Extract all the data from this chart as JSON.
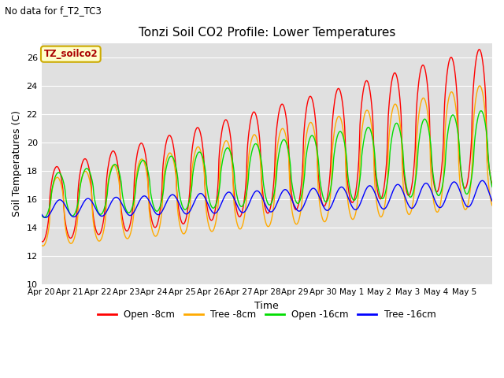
{
  "title": "Tonzi Soil CO2 Profile: Lower Temperatures",
  "subtitle": "No data for f_T2_TC3",
  "ylabel": "Soil Temperatures (C)",
  "xlabel": "Time",
  "annotation": "TZ_soilco2",
  "ylim": [
    10,
    27
  ],
  "yticks": [
    10,
    12,
    14,
    16,
    18,
    20,
    22,
    24,
    26
  ],
  "plot_bg_color": "#e0e0e0",
  "fig_bg_color": "#ffffff",
  "series_colors": [
    "#ff0000",
    "#ffaa00",
    "#00dd00",
    "#0000ff"
  ],
  "series_labels": [
    "Open -8cm",
    "Tree -8cm",
    "Open -16cm",
    "Tree -16cm"
  ],
  "x_tick_labels": [
    "Apr 20",
    "Apr 21",
    "Apr 22",
    "Apr 23",
    "Apr 24",
    "Apr 25",
    "Apr 26",
    "Apr 27",
    "Apr 28",
    "Apr 29",
    "Apr 30",
    "May 1",
    "May 2",
    "May 3",
    "May 4",
    "May 5"
  ],
  "n_days": 16,
  "pts_per_day": 48
}
